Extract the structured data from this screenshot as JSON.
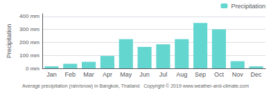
{
  "chart_data": {
    "type": "bar",
    "categories": [
      "Jan",
      "Feb",
      "Mar",
      "Apr",
      "May",
      "Jun",
      "Jul",
      "Aug",
      "Sep",
      "Oct",
      "Nov",
      "Dec"
    ],
    "series": [
      {
        "name": "Precipitation",
        "color": "#63d6d0",
        "values": [
          15,
          35,
          50,
          95,
          225,
          165,
          185,
          225,
          350,
          300,
          55,
          15
        ]
      }
    ],
    "ylabel": "Precipitation",
    "ylim": [
      0,
      420
    ],
    "yticks": [
      {
        "value": 0,
        "label": "0 mm"
      },
      {
        "value": 100,
        "label": "100 mm"
      },
      {
        "value": 200,
        "label": "200 mm"
      },
      {
        "value": 300,
        "label": "300 mm"
      },
      {
        "value": 400,
        "label": "400 mm"
      }
    ],
    "grid": true,
    "legend": "upper right",
    "caption": "Average precipitation (rain/snow) in Bangkok, Thailand   Copyright © 2019 www.weather-and-climate.com"
  }
}
